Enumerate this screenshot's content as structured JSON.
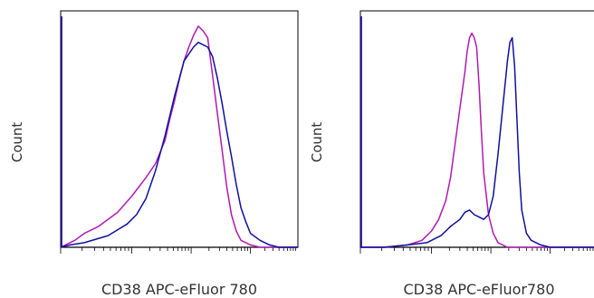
{
  "chart_data": [
    {
      "type": "line",
      "title": "",
      "xlabel": "CD38 APC-eFluor 780",
      "ylabel": "Count",
      "x_scale": "log",
      "grid": false,
      "legend": "none",
      "series": [
        {
          "color": "#b01ab0",
          "x": [
            0,
            2,
            6,
            10,
            16,
            24,
            30,
            36,
            40,
            44,
            46,
            48,
            50,
            52,
            54,
            56,
            58,
            60,
            62,
            64,
            66,
            68,
            70,
            72,
            74,
            76,
            80,
            84,
            90,
            100
          ],
          "y": [
            0,
            1,
            3,
            6,
            9,
            15,
            22,
            30,
            36,
            46,
            55,
            63,
            72,
            80,
            86,
            91,
            95,
            93,
            90,
            74,
            58,
            42,
            26,
            14,
            7,
            3,
            1,
            0,
            0,
            0
          ]
        },
        {
          "color": "#10109e",
          "x": [
            0,
            4,
            10,
            20,
            28,
            32,
            36,
            40,
            44,
            48,
            52,
            56,
            58,
            60,
            62,
            64,
            66,
            68,
            70,
            72,
            74,
            76,
            78,
            80,
            84,
            88,
            92,
            96,
            100
          ],
          "y": [
            0,
            1,
            2,
            5,
            10,
            14,
            21,
            33,
            48,
            65,
            80,
            86,
            88,
            87,
            86,
            82,
            73,
            62,
            50,
            39,
            27,
            17,
            11,
            6,
            3,
            1,
            0,
            0,
            0
          ]
        }
      ]
    },
    {
      "type": "line",
      "title": "",
      "xlabel": "CD38 APC-eFluor780",
      "ylabel": "Count",
      "x_scale": "log",
      "grid": false,
      "legend": "none",
      "series": [
        {
          "color": "#b01ab0",
          "x": [
            0,
            10,
            20,
            26,
            30,
            33,
            36,
            38,
            40,
            42,
            44,
            45,
            46,
            47,
            48,
            49,
            50,
            51,
            52,
            54,
            56,
            58,
            60,
            62,
            66,
            70,
            80,
            100
          ],
          "y": [
            0,
            0,
            1,
            3,
            7,
            12,
            20,
            30,
            45,
            60,
            75,
            84,
            90,
            92,
            90,
            86,
            70,
            50,
            32,
            14,
            6,
            2,
            1,
            0,
            0,
            0,
            0,
            0
          ]
        },
        {
          "color": "#10109e",
          "x": [
            0,
            10,
            20,
            28,
            34,
            38,
            42,
            44,
            46,
            48,
            50,
            52,
            54,
            56,
            58,
            60,
            62,
            63,
            64,
            65,
            66,
            67,
            68,
            70,
            72,
            76,
            80,
            90,
            100
          ],
          "y": [
            0,
            0,
            1,
            2,
            5,
            9,
            12,
            15,
            16,
            14,
            13,
            12,
            14,
            22,
            40,
            60,
            80,
            88,
            90,
            78,
            55,
            32,
            16,
            6,
            3,
            1,
            0,
            0,
            0
          ]
        }
      ]
    }
  ]
}
